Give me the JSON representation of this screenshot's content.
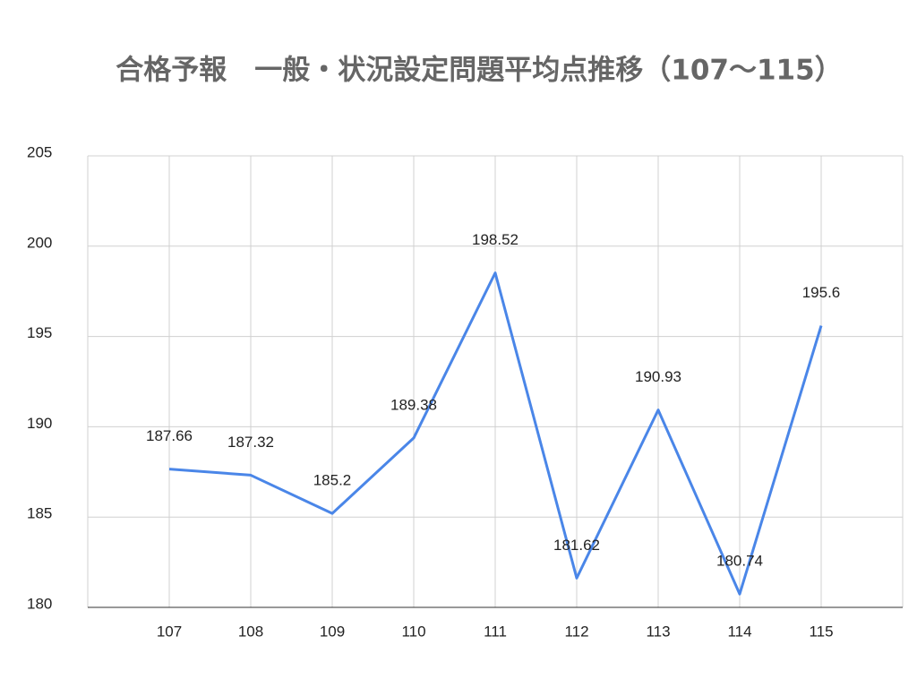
{
  "chart_data": {
    "type": "line",
    "title": "合格予報　一般・状況設定問題平均点推移（107〜115）",
    "categories": [
      "107",
      "108",
      "109",
      "110",
      "111",
      "112",
      "113",
      "114",
      "115"
    ],
    "values": [
      187.66,
      187.32,
      185.2,
      189.38,
      198.52,
      181.62,
      190.93,
      180.74,
      195.6
    ],
    "color": "#4a86e8",
    "ylim": [
      180,
      205
    ],
    "yticks": [
      180,
      185,
      190,
      195,
      200,
      205
    ],
    "grid": true
  }
}
